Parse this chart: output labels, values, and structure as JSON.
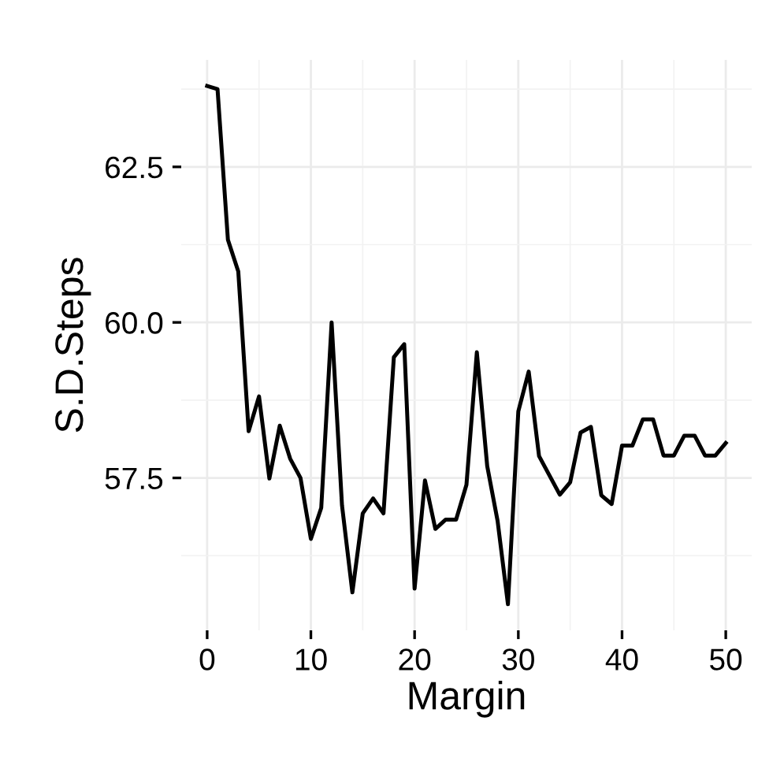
{
  "chart_data": {
    "type": "line",
    "xlabel": "Margin",
    "ylabel": "S.D.Steps",
    "x": [
      0,
      1,
      2,
      3,
      4,
      5,
      6,
      7,
      8,
      9,
      10,
      11,
      12,
      13,
      14,
      15,
      16,
      17,
      18,
      19,
      20,
      21,
      22,
      23,
      24,
      25,
      26,
      27,
      28,
      29,
      30,
      31,
      32,
      33,
      34,
      35,
      36,
      37,
      38,
      39,
      40,
      41,
      42,
      43,
      44,
      45,
      46,
      47,
      48,
      49,
      50
    ],
    "series": [
      {
        "color": "#000000",
        "values": [
          63.8,
          63.75,
          61.33,
          60.82,
          58.25,
          58.81,
          57.49,
          58.34,
          57.81,
          57.5,
          56.52,
          57.02,
          60.0,
          57.06,
          55.66,
          56.93,
          57.17,
          56.93,
          59.44,
          59.65,
          55.72,
          57.46,
          56.68,
          56.83,
          56.83,
          57.39,
          59.52,
          57.69,
          56.81,
          55.47,
          58.57,
          59.21,
          57.85,
          57.54,
          57.23,
          57.43,
          58.23,
          58.32,
          57.22,
          57.08,
          58.02,
          58.02,
          58.44,
          58.44,
          57.86,
          57.86,
          58.18,
          58.18,
          57.86,
          57.86,
          58.06
        ]
      }
    ],
    "xlim": [
      -2.5,
      52.5
    ],
    "ylim": [
      55.05,
      64.22
    ],
    "xticks": [
      0,
      10,
      20,
      30,
      40,
      50
    ],
    "yticks": [
      57.5,
      {
        "value": 60,
        "label": "60.0"
      },
      62.5
    ],
    "grid": true,
    "line_style": "solid",
    "marker": "none"
  }
}
